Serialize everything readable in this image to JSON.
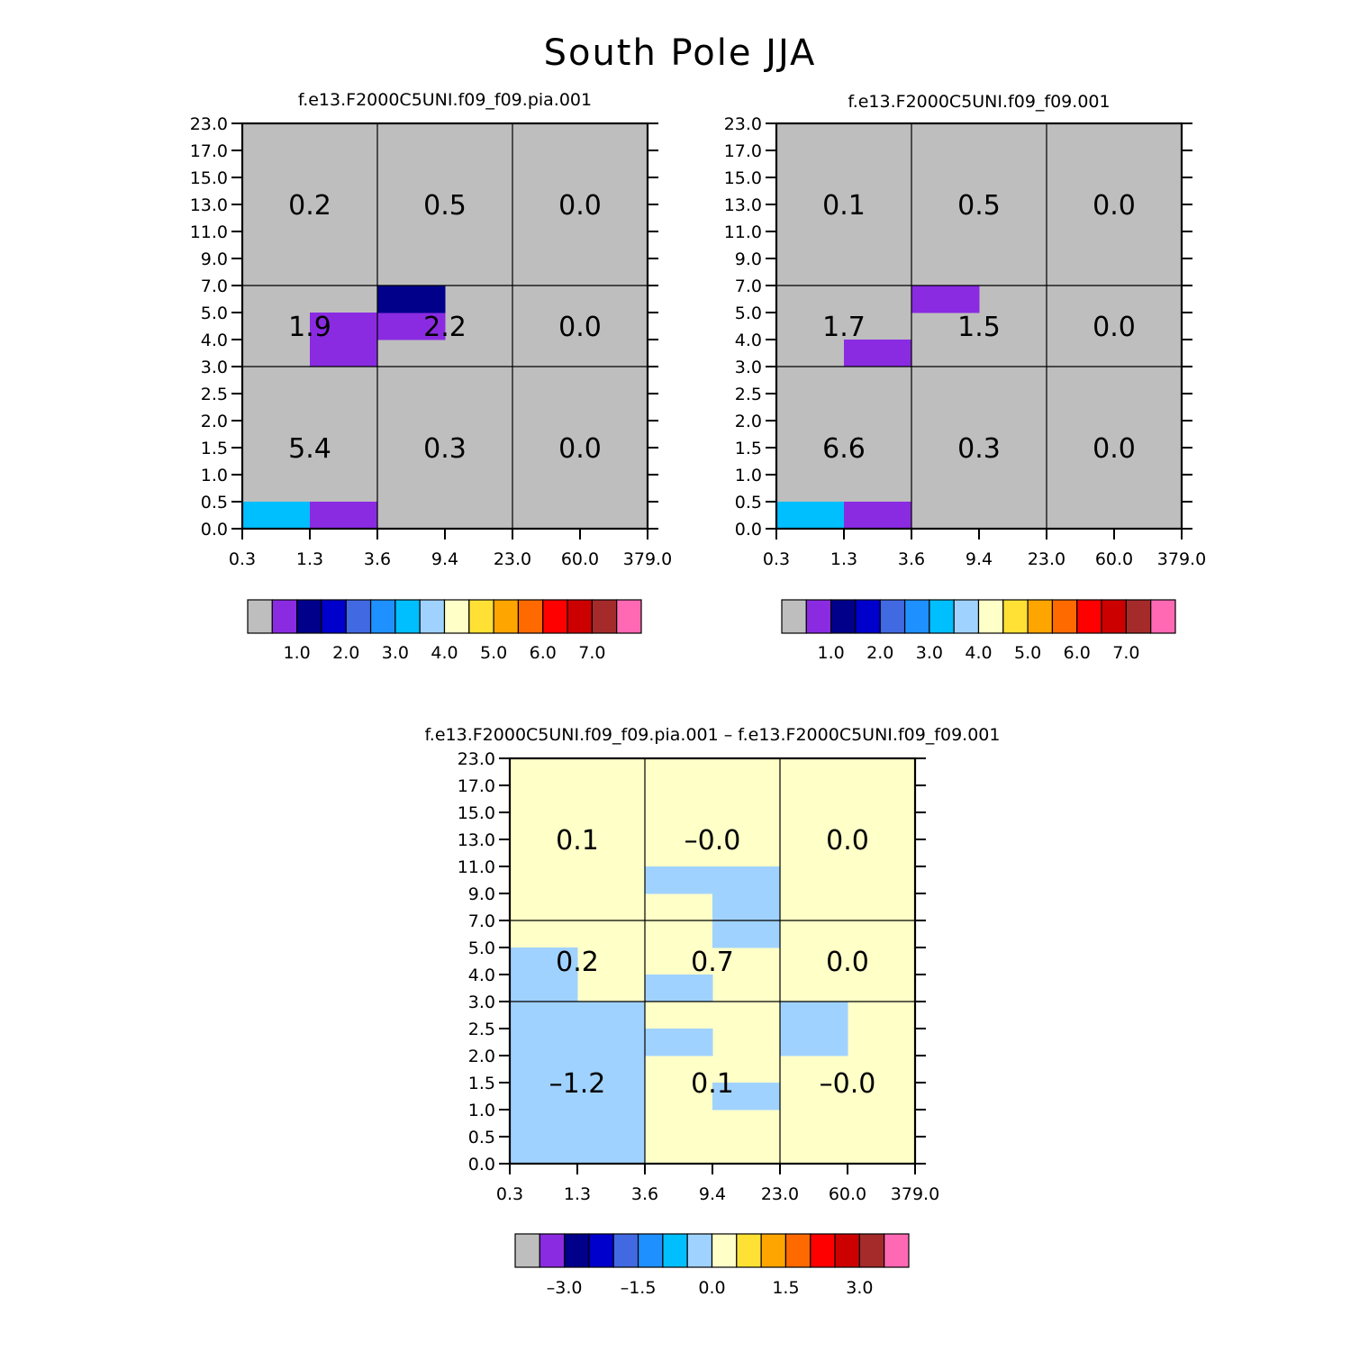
{
  "figure_title": "South Pole JJA",
  "colors": {
    "top_palette": [
      "#bebebe",
      "#8a2be2",
      "#00008b",
      "#0000cd",
      "#4169e1",
      "#1e90ff",
      "#00bfff",
      "#a0d2ff",
      "#ffffc8",
      "#ffe135",
      "#ffa500",
      "#ff6a00",
      "#ff0000",
      "#cd0000",
      "#a52a2a",
      "#ff69b4"
    ],
    "diff_palette": [
      "#bebebe",
      "#8a2be2",
      "#00008b",
      "#0000cd",
      "#4169e1",
      "#1e90ff",
      "#00bfff",
      "#a0d2ff",
      "#ffffc8",
      "#ffe135",
      "#ffa500",
      "#ff6a00",
      "#ff0000",
      "#cd0000",
      "#a52a2a",
      "#ff69b4"
    ]
  },
  "chart_data": [
    {
      "type": "heatmap",
      "title": "f.e13.F2000C5UNI.f09_f09.pia.001",
      "x_ticks": [
        "0.3",
        "1.3",
        "3.6",
        "9.4",
        "23.0",
        "60.0",
        "379.0"
      ],
      "y_ticks": [
        "0.0",
        "0.5",
        "1.0",
        "1.5",
        "2.0",
        "2.5",
        "3.0",
        "4.0",
        "5.0",
        "7.0",
        "9.0",
        "11.0",
        "13.0",
        "15.0",
        "17.0",
        "23.0"
      ],
      "grid": true,
      "background_color_index": 0,
      "cells": [
        {
          "x": 0,
          "y": 0,
          "color_index": 6
        },
        {
          "x": 1,
          "y": 0,
          "color_index": 1
        },
        {
          "x": 1,
          "y": 7,
          "color_index": 1
        },
        {
          "x": 1,
          "y": 6,
          "color_index": 1
        },
        {
          "x": 2,
          "y": 7,
          "color_index": 1
        },
        {
          "x": 2,
          "y": 8,
          "color_index": 2
        }
      ],
      "group_labels": [
        {
          "col": 0,
          "row": 2,
          "text": "0.2"
        },
        {
          "col": 1,
          "row": 2,
          "text": "0.5"
        },
        {
          "col": 2,
          "row": 2,
          "text": "0.0"
        },
        {
          "col": 0,
          "row": 1,
          "text": "1.9"
        },
        {
          "col": 1,
          "row": 1,
          "text": "2.2"
        },
        {
          "col": 2,
          "row": 1,
          "text": "0.0"
        },
        {
          "col": 0,
          "row": 0,
          "text": "5.4"
        },
        {
          "col": 1,
          "row": 0,
          "text": "0.3"
        },
        {
          "col": 2,
          "row": 0,
          "text": "0.0"
        }
      ],
      "colorbar": {
        "labels": [
          "1.0",
          "2.0",
          "3.0",
          "4.0",
          "5.0",
          "6.0",
          "7.0"
        ],
        "palette": "top_palette"
      }
    },
    {
      "type": "heatmap",
      "title": "f.e13.F2000C5UNI.f09_f09.001",
      "x_ticks": [
        "0.3",
        "1.3",
        "3.6",
        "9.4",
        "23.0",
        "60.0",
        "379.0"
      ],
      "y_ticks": [
        "0.0",
        "0.5",
        "1.0",
        "1.5",
        "2.0",
        "2.5",
        "3.0",
        "4.0",
        "5.0",
        "7.0",
        "9.0",
        "11.0",
        "13.0",
        "15.0",
        "17.0",
        "23.0"
      ],
      "grid": true,
      "background_color_index": 0,
      "cells": [
        {
          "x": 0,
          "y": 0,
          "color_index": 6
        },
        {
          "x": 1,
          "y": 0,
          "color_index": 1
        },
        {
          "x": 1,
          "y": 6,
          "color_index": 1
        },
        {
          "x": 2,
          "y": 8,
          "color_index": 1
        }
      ],
      "group_labels": [
        {
          "col": 0,
          "row": 2,
          "text": "0.1"
        },
        {
          "col": 1,
          "row": 2,
          "text": "0.5"
        },
        {
          "col": 2,
          "row": 2,
          "text": "0.0"
        },
        {
          "col": 0,
          "row": 1,
          "text": "1.7"
        },
        {
          "col": 1,
          "row": 1,
          "text": "1.5"
        },
        {
          "col": 2,
          "row": 1,
          "text": "0.0"
        },
        {
          "col": 0,
          "row": 0,
          "text": "6.6"
        },
        {
          "col": 1,
          "row": 0,
          "text": "0.3"
        },
        {
          "col": 2,
          "row": 0,
          "text": "0.0"
        }
      ],
      "colorbar": {
        "labels": [
          "1.0",
          "2.0",
          "3.0",
          "4.0",
          "5.0",
          "6.0",
          "7.0"
        ],
        "palette": "top_palette"
      }
    },
    {
      "type": "heatmap",
      "title": "f.e13.F2000C5UNI.f09_f09.pia.001 – f.e13.F2000C5UNI.f09_f09.001",
      "x_ticks": [
        "0.3",
        "1.3",
        "3.6",
        "9.4",
        "23.0",
        "60.0",
        "379.0"
      ],
      "y_ticks": [
        "0.0",
        "0.5",
        "1.0",
        "1.5",
        "2.0",
        "2.5",
        "3.0",
        "4.0",
        "5.0",
        "7.0",
        "9.0",
        "11.0",
        "13.0",
        "15.0",
        "17.0",
        "23.0"
      ],
      "grid": true,
      "background_color_index": 8,
      "cells": [
        {
          "x": 0,
          "y": 0,
          "color_index": 7
        },
        {
          "x": 0,
          "y": 1,
          "color_index": 7
        },
        {
          "x": 0,
          "y": 2,
          "color_index": 7
        },
        {
          "x": 0,
          "y": 3,
          "color_index": 7
        },
        {
          "x": 0,
          "y": 4,
          "color_index": 7
        },
        {
          "x": 0,
          "y": 5,
          "color_index": 7
        },
        {
          "x": 1,
          "y": 0,
          "color_index": 7
        },
        {
          "x": 1,
          "y": 1,
          "color_index": 7
        },
        {
          "x": 1,
          "y": 2,
          "color_index": 7
        },
        {
          "x": 1,
          "y": 3,
          "color_index": 7
        },
        {
          "x": 1,
          "y": 4,
          "color_index": 7
        },
        {
          "x": 1,
          "y": 5,
          "color_index": 7
        },
        {
          "x": 0,
          "y": 6,
          "color_index": 7
        },
        {
          "x": 0,
          "y": 7,
          "color_index": 7
        },
        {
          "x": 2,
          "y": 6,
          "color_index": 7
        },
        {
          "x": 2,
          "y": 4,
          "color_index": 7
        },
        {
          "x": 3,
          "y": 2,
          "color_index": 7
        },
        {
          "x": 3,
          "y": 8,
          "color_index": 7
        },
        {
          "x": 3,
          "y": 9,
          "color_index": 7
        },
        {
          "x": 3,
          "y": 10,
          "color_index": 7
        },
        {
          "x": 2,
          "y": 10,
          "color_index": 7
        },
        {
          "x": 4,
          "y": 4,
          "color_index": 7
        },
        {
          "x": 4,
          "y": 5,
          "color_index": 7
        }
      ],
      "group_labels": [
        {
          "col": 0,
          "row": 2,
          "text": "0.1"
        },
        {
          "col": 1,
          "row": 2,
          "text": "–0.0"
        },
        {
          "col": 2,
          "row": 2,
          "text": "0.0"
        },
        {
          "col": 0,
          "row": 1,
          "text": "0.2"
        },
        {
          "col": 1,
          "row": 1,
          "text": "0.7"
        },
        {
          "col": 2,
          "row": 1,
          "text": "0.0"
        },
        {
          "col": 0,
          "row": 0,
          "text": "–1.2"
        },
        {
          "col": 1,
          "row": 0,
          "text": "0.1"
        },
        {
          "col": 2,
          "row": 0,
          "text": "–0.0"
        }
      ],
      "colorbar": {
        "labels": [
          "–3.0",
          "–1.5",
          "0.0",
          "1.5",
          "3.0"
        ],
        "palette": "diff_palette"
      }
    }
  ]
}
